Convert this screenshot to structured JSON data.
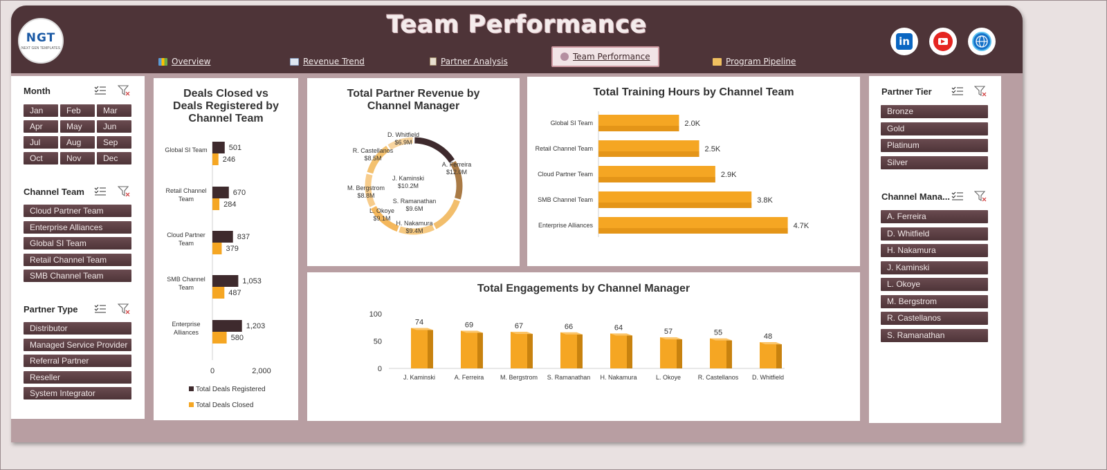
{
  "header": {
    "title": "Team Performance",
    "logo_text": "NGT",
    "logo_sub": "NEXT GEN TEMPLATES",
    "nav": [
      {
        "label": "Overview",
        "icon": "overview-icon"
      },
      {
        "label": "Revenue Trend",
        "icon": "trend-icon"
      },
      {
        "label": "Partner Analysis",
        "icon": "clipboard-icon"
      },
      {
        "label": "Team Performance",
        "icon": "team-icon"
      },
      {
        "label": "Program Pipeline",
        "icon": "folder-icon"
      }
    ],
    "social": {
      "linkedin": "in"
    }
  },
  "slicers": {
    "month": {
      "title": "Month",
      "items": [
        "Jan",
        "Feb",
        "Mar",
        "Apr",
        "May",
        "Jun",
        "Jul",
        "Aug",
        "Sep",
        "Oct",
        "Nov",
        "Dec"
      ]
    },
    "channel_team": {
      "title": "Channel Team",
      "items": [
        "Cloud Partner Team",
        "Enterprise Alliances",
        "Global SI Team",
        "Retail Channel Team",
        "SMB Channel Team"
      ]
    },
    "partner_type": {
      "title": "Partner Type",
      "items": [
        "Distributor",
        "Managed Service Provider",
        "Referral Partner",
        "Reseller",
        "System Integrator"
      ]
    },
    "partner_tier": {
      "title": "Partner Tier",
      "items": [
        "Bronze",
        "Gold",
        "Platinum",
        "Silver"
      ]
    },
    "channel_manager": {
      "title": "Channel Mana...",
      "items": [
        "A. Ferreira",
        "D. Whitfield",
        "H. Nakamura",
        "J. Kaminski",
        "L. Okoye",
        "M. Bergstrom",
        "R. Castellanos",
        "S. Ramanathan"
      ]
    }
  },
  "colors": {
    "dark": "#4e3438",
    "accent": "#f5a623",
    "bar_dark": "#3e2a2d"
  },
  "chart_data": [
    {
      "type": "bar",
      "title_lines": [
        "Deals Closed vs",
        "Deals Registered by",
        "Channel Team"
      ],
      "categories": [
        "Global SI Team",
        "Retail Channel Team",
        "Cloud Partner Team",
        "SMB Channel Team",
        "Enterprise Alliances"
      ],
      "category_lines": [
        [
          "Global SI Team"
        ],
        [
          "Retail Channel",
          "Team"
        ],
        [
          "Cloud Partner",
          "Team"
        ],
        [
          "SMB Channel",
          "Team"
        ],
        [
          "Enterprise",
          "Alliances"
        ]
      ],
      "series": [
        {
          "name": "Total Deals Registered",
          "values": [
            501,
            670,
            837,
            1053,
            1203
          ],
          "labels": [
            "501",
            "670",
            "837",
            "1,053",
            "1,203"
          ]
        },
        {
          "name": "Total Deals Closed",
          "values": [
            246,
            284,
            379,
            487,
            580
          ],
          "labels": [
            "246",
            "284",
            "379",
            "487",
            "580"
          ]
        }
      ],
      "xlim": [
        0,
        2000
      ],
      "ticks": [
        0,
        2000
      ],
      "tick_labels": [
        "0",
        "2,000"
      ],
      "legend": "bottom"
    },
    {
      "type": "pie",
      "title_lines": [
        "Total Partner Revenue by",
        "Channel Manager"
      ],
      "slices": [
        {
          "name": "A. Ferreira",
          "value": 12.0,
          "label": "$12.0M"
        },
        {
          "name": "J. Kaminski",
          "value": 10.2,
          "label": "$10.2M"
        },
        {
          "name": "S. Ramanathan",
          "value": 9.6,
          "label": "$9.6M"
        },
        {
          "name": "H. Nakamura",
          "value": 9.4,
          "label": "$9.4M"
        },
        {
          "name": "L. Okoye",
          "value": 9.1,
          "label": "$9.1M"
        },
        {
          "name": "M. Bergstrom",
          "value": 8.8,
          "label": "$8.8M"
        },
        {
          "name": "R. Castellanos",
          "value": 8.5,
          "label": "$8.5M"
        },
        {
          "name": "D. Whitfield",
          "value": 6.9,
          "label": "$6.9M"
        }
      ]
    },
    {
      "type": "bar",
      "title": "Total Training Hours by Channel Team",
      "categories": [
        "Global SI Team",
        "Retail Channel Team",
        "Cloud Partner Team",
        "SMB Channel Team",
        "Enterprise Alliances"
      ],
      "values": [
        2000,
        2500,
        2900,
        3800,
        4700
      ],
      "labels": [
        "2.0K",
        "2.5K",
        "2.9K",
        "3.8K",
        "4.7K"
      ],
      "xlim": [
        0,
        5000
      ]
    },
    {
      "type": "bar",
      "title": "Total Engagements by Channel Manager",
      "categories": [
        "J. Kaminski",
        "A. Ferreira",
        "M. Bergstrom",
        "S. Ramanathan",
        "H. Nakamura",
        "L. Okoye",
        "R. Castellanos",
        "D. Whitfield"
      ],
      "values": [
        74,
        69,
        67,
        66,
        64,
        57,
        55,
        48
      ],
      "ylim": [
        0,
        100
      ],
      "ticks": [
        0,
        50,
        100
      ]
    }
  ]
}
